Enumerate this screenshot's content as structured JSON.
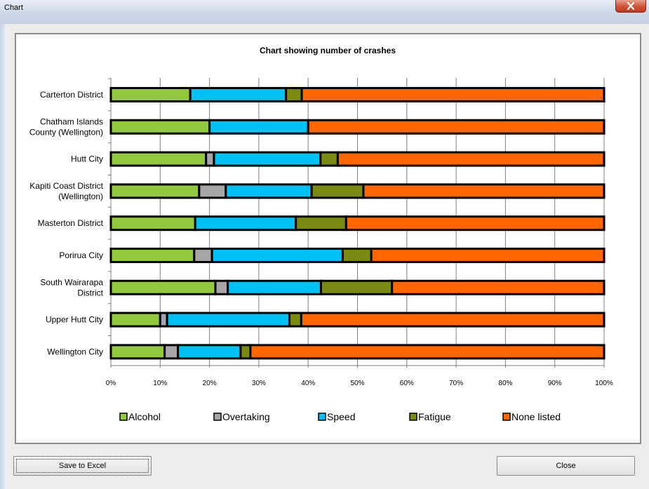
{
  "window": {
    "title": "Chart"
  },
  "buttons": {
    "save_label": "Save to Excel",
    "close_label": "Close"
  },
  "chart_data": {
    "type": "bar",
    "orientation": "horizontal",
    "stacked": "percent",
    "title": "Chart showing number of crashes",
    "xlabel": "",
    "ylabel": "",
    "xlim": [
      0,
      100
    ],
    "x_ticks": [
      "0%",
      "10%",
      "20%",
      "30%",
      "40%",
      "50%",
      "60%",
      "70%",
      "80%",
      "90%",
      "100%"
    ],
    "grid": true,
    "legend_position": "bottom",
    "categories": [
      [
        "Carterton District"
      ],
      [
        "Chatham Islands",
        "County (Wellington)"
      ],
      [
        "Hutt City"
      ],
      [
        "Kapiti Coast District",
        "(Wellington)"
      ],
      [
        "Masterton District"
      ],
      [
        "Porirua City"
      ],
      [
        "South Wairarapa",
        "District"
      ],
      [
        "Upper Hutt City"
      ],
      [
        "Wellington City"
      ]
    ],
    "series": [
      {
        "name": "Alcohol",
        "color": "#92c83e",
        "values": [
          16.1,
          20.0,
          19.3,
          17.9,
          17.1,
          16.9,
          21.2,
          10.0,
          10.9
        ]
      },
      {
        "name": "Overtaking",
        "color": "#a6a6a6",
        "values": [
          0.0,
          0.0,
          1.6,
          5.4,
          0.0,
          3.6,
          2.5,
          1.4,
          2.7
        ]
      },
      {
        "name": "Speed",
        "color": "#00c1f5",
        "values": [
          19.4,
          20.0,
          21.6,
          17.4,
          20.4,
          26.5,
          18.9,
          24.8,
          12.7
        ]
      },
      {
        "name": "Fatigue",
        "color": "#7a8a12",
        "values": [
          3.2,
          0.0,
          3.5,
          10.5,
          10.2,
          5.8,
          14.4,
          2.4,
          2.0
        ]
      },
      {
        "name": "None listed",
        "color": "#ff6600",
        "values": [
          61.3,
          60.0,
          54.0,
          48.8,
          52.3,
          47.2,
          43.0,
          61.4,
          71.7
        ]
      }
    ]
  }
}
